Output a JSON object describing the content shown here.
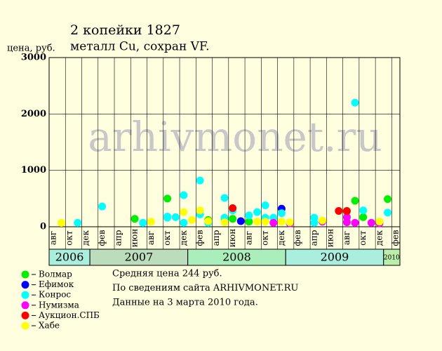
{
  "chart_data": {
    "type": "scatter",
    "title": "2 копейки 1827",
    "subtitle": "металл Cu, сохран VF.",
    "y_label": "цена, руб.",
    "watermark": "arhivmonet.ru",
    "notes": [
      "Средняя цена 244 руб.",
      "По сведениям сайта ARHIVMONET.RU",
      "Данные на 3 марта 2010 года."
    ],
    "xlim": [
      "2006-08",
      "2010-02"
    ],
    "xticks": [
      {
        "value": "2006-08",
        "label": "авг"
      },
      {
        "value": "2006-10",
        "label": "окт"
      },
      {
        "value": "2006-12",
        "label": "дек"
      },
      {
        "value": "2007-02",
        "label": "фев"
      },
      {
        "value": "2007-04",
        "label": "апр"
      },
      {
        "value": "2007-06",
        "label": "июн"
      },
      {
        "value": "2007-08",
        "label": "авг"
      },
      {
        "value": "2007-10",
        "label": "окт"
      },
      {
        "value": "2007-12",
        "label": "дек"
      },
      {
        "value": "2008-02",
        "label": "фев"
      },
      {
        "value": "2008-04",
        "label": "апр"
      },
      {
        "value": "2008-06",
        "label": "июн"
      },
      {
        "value": "2008-08",
        "label": "авг"
      },
      {
        "value": "2008-10",
        "label": "окт"
      },
      {
        "value": "2008-12",
        "label": "дек"
      },
      {
        "value": "2009-02",
        "label": "фев"
      },
      {
        "value": "2009-04",
        "label": "апр"
      },
      {
        "value": "2009-06",
        "label": "июн"
      },
      {
        "value": "2009-08",
        "label": "авг"
      },
      {
        "value": "2009-10",
        "label": "окт"
      },
      {
        "value": "2009-12",
        "label": "дек"
      },
      {
        "value": "2010-02",
        "label": "фев"
      }
    ],
    "years": [
      2006,
      2007,
      2008,
      2009,
      2010
    ],
    "year_colors": [
      "#aaeedd",
      "#bbddbb",
      "#aaeebb",
      "#aaeedd",
      "#bbeeaa"
    ],
    "ylim": [
      0,
      3000
    ],
    "yticks": [
      0,
      1000,
      2000,
      3000
    ],
    "grid": true,
    "series": [
      {
        "name": "Волмар",
        "color": "#00ee00",
        "x": [
          "2007-06",
          "2007-10",
          "2008-03",
          "2008-05",
          "2008-06",
          "2008-08",
          "2009-08",
          "2009-09",
          "2009-10",
          "2010-01"
        ],
        "values": [
          140,
          500,
          120,
          150,
          140,
          90,
          270,
          460,
          170,
          490
        ]
      },
      {
        "name": "Ефимок",
        "color": "#0000ff",
        "x": [
          "2008-07",
          "2008-12"
        ],
        "values": [
          100,
          320
        ]
      },
      {
        "name": "Конрос",
        "color": "#00ffff",
        "x": [
          "2006-11",
          "2007-02",
          "2007-07",
          "2007-10",
          "2007-10",
          "2007-11",
          "2007-12",
          "2007-12",
          "2008-02",
          "2008-02",
          "2008-03",
          "2008-05",
          "2008-05",
          "2008-06",
          "2008-08",
          "2008-09",
          "2008-10",
          "2008-10",
          "2008-11",
          "2008-12",
          "2009-04",
          "2009-04",
          "2009-09",
          "2009-10",
          "2010-01"
        ],
        "values": [
          70,
          360,
          70,
          180,
          160,
          170,
          560,
          70,
          220,
          820,
          70,
          510,
          160,
          290,
          200,
          260,
          160,
          380,
          160,
          240,
          70,
          160,
          2200,
          290,
          250
        ]
      },
      {
        "name": "Нумизма",
        "color": "#ff00ff",
        "x": [
          "2008-11",
          "2009-01",
          "2009-05",
          "2009-08",
          "2009-08",
          "2009-09",
          "2009-11",
          "2009-12"
        ],
        "values": [
          70,
          60,
          90,
          170,
          80,
          70,
          70,
          60
        ]
      },
      {
        "name": "Аукцион.СПБ",
        "color": "#ff0000",
        "x": [
          "2008-06",
          "2009-07",
          "2009-08"
        ],
        "values": [
          330,
          280,
          280
        ]
      },
      {
        "name": "Хабе",
        "color": "#ffff00",
        "x": [
          "2006-09",
          "2006-09",
          "2007-08",
          "2007-12",
          "2008-01",
          "2008-02",
          "2008-03",
          "2008-05",
          "2008-09",
          "2008-10",
          "2008-12",
          "2009-01",
          "2009-05",
          "2009-12"
        ],
        "values": [
          70,
          70,
          90,
          260,
          120,
          290,
          100,
          80,
          90,
          90,
          90,
          80,
          110,
          90
        ]
      }
    ]
  }
}
